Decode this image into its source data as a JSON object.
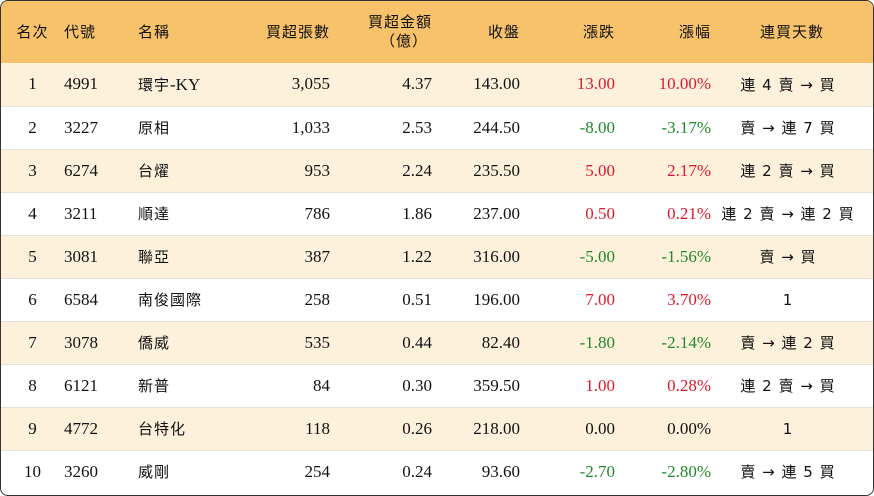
{
  "colors": {
    "header_bg": "#f7c26a",
    "row_alt_bg": "#fdf1dc",
    "up": "#e0182d",
    "down": "#1f8a2c"
  },
  "headers": {
    "rank": "名次",
    "code": "代號",
    "name": "名稱",
    "net_lots": "買超張數",
    "net_amount_line1": "買超金額",
    "net_amount_line2": "（億）",
    "close": "收盤",
    "change": "漲跌",
    "change_pct": "漲幅",
    "streak": "連買天數"
  },
  "rows": [
    {
      "rank": "1",
      "code": "4991",
      "name_cjk": "環宇",
      "name_suffix": "-KY",
      "net_lots": "3,055",
      "net_amount": "4.37",
      "close": "143.00",
      "change": "13.00",
      "change_pct": "10.00%",
      "trend": "up",
      "streak": "連 4 賣 → 買"
    },
    {
      "rank": "2",
      "code": "3227",
      "name_cjk": "原相",
      "name_suffix": "",
      "net_lots": "1,033",
      "net_amount": "2.53",
      "close": "244.50",
      "change": "-8.00",
      "change_pct": "-3.17%",
      "trend": "down",
      "streak": "賣 → 連 7 買"
    },
    {
      "rank": "3",
      "code": "6274",
      "name_cjk": "台燿",
      "name_suffix": "",
      "net_lots": "953",
      "net_amount": "2.24",
      "close": "235.50",
      "change": "5.00",
      "change_pct": "2.17%",
      "trend": "up",
      "streak": "連 2 賣 → 買"
    },
    {
      "rank": "4",
      "code": "3211",
      "name_cjk": "順達",
      "name_suffix": "",
      "net_lots": "786",
      "net_amount": "1.86",
      "close": "237.00",
      "change": "0.50",
      "change_pct": "0.21%",
      "trend": "up",
      "streak": "連 2 賣 → 連 2 買"
    },
    {
      "rank": "5",
      "code": "3081",
      "name_cjk": "聯亞",
      "name_suffix": "",
      "net_lots": "387",
      "net_amount": "1.22",
      "close": "316.00",
      "change": "-5.00",
      "change_pct": "-1.56%",
      "trend": "down",
      "streak": "賣 → 買"
    },
    {
      "rank": "6",
      "code": "6584",
      "name_cjk": "南俊國際",
      "name_suffix": "",
      "net_lots": "258",
      "net_amount": "0.51",
      "close": "196.00",
      "change": "7.00",
      "change_pct": "3.70%",
      "trend": "up",
      "streak": "1"
    },
    {
      "rank": "7",
      "code": "3078",
      "name_cjk": "僑威",
      "name_suffix": "",
      "net_lots": "535",
      "net_amount": "0.44",
      "close": "82.40",
      "change": "-1.80",
      "change_pct": "-2.14%",
      "trend": "down",
      "streak": "賣 → 連 2 買"
    },
    {
      "rank": "8",
      "code": "6121",
      "name_cjk": "新普",
      "name_suffix": "",
      "net_lots": "84",
      "net_amount": "0.30",
      "close": "359.50",
      "change": "1.00",
      "change_pct": "0.28%",
      "trend": "up",
      "streak": "連 2 賣 → 買"
    },
    {
      "rank": "9",
      "code": "4772",
      "name_cjk": "台特化",
      "name_suffix": "",
      "net_lots": "118",
      "net_amount": "0.26",
      "close": "218.00",
      "change": "0.00",
      "change_pct": "0.00%",
      "trend": "flat",
      "streak": "1"
    },
    {
      "rank": "10",
      "code": "3260",
      "name_cjk": "威剛",
      "name_suffix": "",
      "net_lots": "254",
      "net_amount": "0.24",
      "close": "93.60",
      "change": "-2.70",
      "change_pct": "-2.80%",
      "trend": "down",
      "streak": "賣 → 連 5 買"
    }
  ]
}
